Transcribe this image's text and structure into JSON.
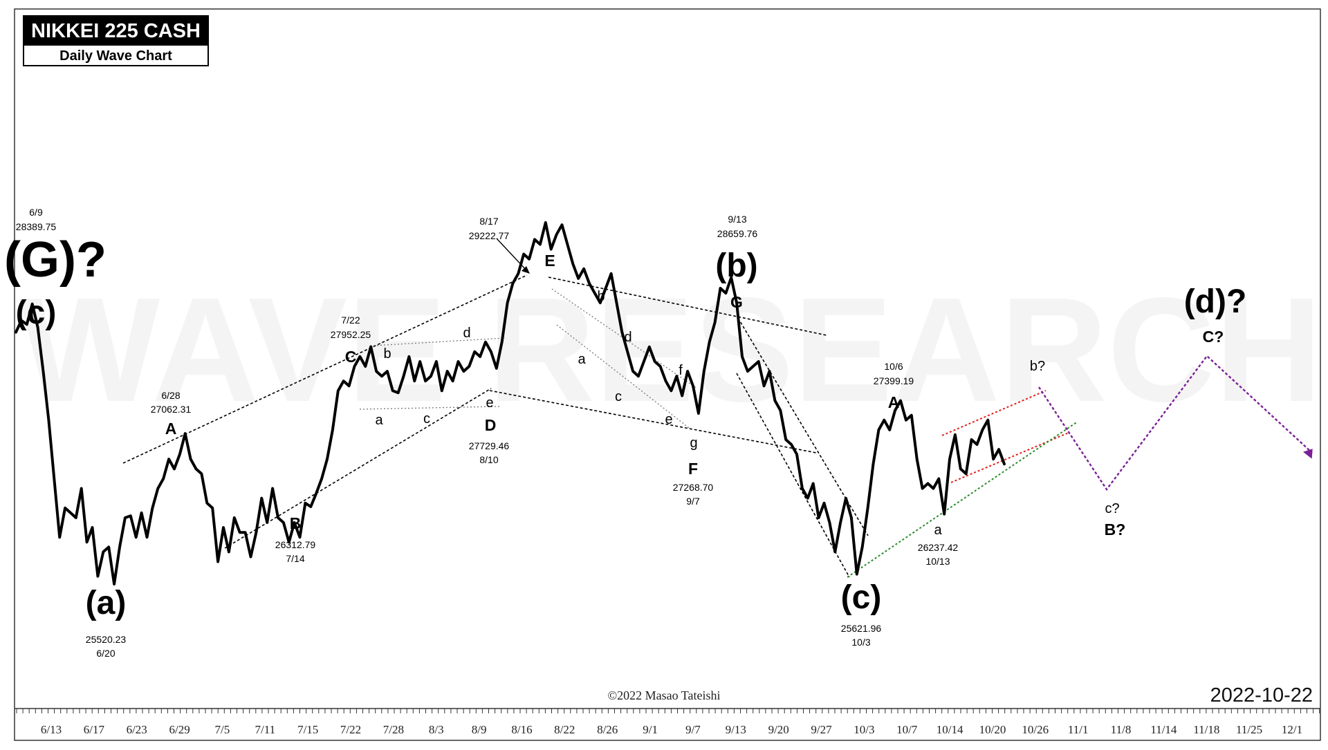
{
  "header": {
    "title": "NIKKEI 225 CASH",
    "subtitle": "Daily Wave Chart"
  },
  "watermark": "WAVE RESEARCH",
  "copyright": "©2022 Masao Tateishi",
  "date_stamp": "2022-10-22",
  "colors": {
    "price": "#000000",
    "trendline": "#000000",
    "red_channel": "#e0201a",
    "green_support": "#2a8a2a",
    "projection": "#7a1f96",
    "watermark": "#f4f4f4"
  },
  "chart_data": {
    "type": "line",
    "title": "NIKKEI 225 CASH",
    "subtitle": "Daily Wave Chart",
    "x_ticks": [
      "6/13",
      "6/17",
      "6/23",
      "6/29",
      "7/5",
      "7/11",
      "7/15",
      "7/22",
      "7/28",
      "8/3",
      "8/9",
      "8/16",
      "8/22",
      "8/26",
      "9/1",
      "9/7",
      "9/13",
      "9/20",
      "9/27",
      "10/3",
      "10/7",
      "10/14",
      "10/20",
      "10/26",
      "11/1",
      "11/8",
      "11/14",
      "11/18",
      "11/25",
      "12/1"
    ],
    "ylim": [
      25000,
      29600
    ],
    "grid": false,
    "series": [
      {
        "values": [
          28100,
          28220,
          28180,
          28389.75,
          28150,
          27700,
          27200,
          26600,
          26000,
          26300,
          26250,
          26200,
          26500,
          25950,
          26100,
          25600,
          25850,
          25900,
          25520.23,
          25900,
          26200,
          26220,
          26000,
          26250,
          26000,
          26300,
          26500,
          26600,
          26800,
          26700,
          26850,
          27062.31,
          26800,
          26700,
          26650,
          26350,
          26300,
          25750,
          26100,
          25850,
          26200,
          26050,
          26050,
          25800,
          26050,
          26400,
          26150,
          26500,
          26200,
          26150,
          25950,
          26150,
          26000,
          26350,
          26312.79,
          26450,
          26600,
          26800,
          27100,
          27500,
          27600,
          27550,
          27750,
          27850,
          27750,
          27952.25,
          27700,
          27650,
          27700,
          27500,
          27480,
          27650,
          27850,
          27600,
          27800,
          27600,
          27650,
          27800,
          27500,
          27700,
          27600,
          27800,
          27700,
          27750,
          27900,
          27850,
          28000,
          27900,
          27729.46,
          28000,
          28400,
          28600,
          28700,
          28900,
          28850,
          29050,
          29000,
          29222.77,
          28950,
          29100,
          29200,
          29000,
          28800,
          28650,
          28750,
          28600,
          28500,
          28400,
          28550,
          28700,
          28400,
          28100,
          27900,
          27700,
          27650,
          27800,
          27950,
          27800,
          27750,
          27600,
          27500,
          27650,
          27450,
          27700,
          27550,
          27268.7,
          27700,
          28000,
          28200,
          28550,
          28500,
          28659.76,
          28400,
          27850,
          27700,
          27750,
          27800,
          27550,
          27700,
          27400,
          27300,
          27000,
          26950,
          26850,
          26500,
          26400,
          26550,
          26200,
          26350,
          26150,
          25850,
          26150,
          26400,
          26200,
          25621.96,
          25900,
          26300,
          26750,
          27100,
          27200,
          27100,
          27300,
          27399.19,
          27200,
          27250,
          26800,
          26500,
          26550,
          26500,
          26600,
          26237.42,
          26800,
          27050,
          26700,
          26650,
          27000,
          26950,
          27100,
          27200,
          26800,
          26900,
          26750
        ]
      }
    ],
    "swing_labels": [
      {
        "wave": "(G)?",
        "sub": "(c)",
        "date": "6/9",
        "price": "28389.75"
      },
      {
        "wave": "(a)",
        "date": "6/20",
        "price": "25520.23"
      },
      {
        "wave": "A",
        "date": "6/28",
        "price": "27062.31"
      },
      {
        "wave": "B",
        "date": "7/14",
        "price": "26312.79"
      },
      {
        "wave": "C",
        "date": "7/22",
        "price": "27952.25"
      },
      {
        "wave": "D",
        "date": "8/10",
        "price": "27729.46"
      },
      {
        "wave": "E",
        "date": "8/17",
        "price": "29222.77"
      },
      {
        "wave": "F",
        "date": "9/7",
        "price": "27268.70"
      },
      {
        "wave": "(b)",
        "sub": "G",
        "date": "9/13",
        "price": "28659.76"
      },
      {
        "wave": "(c)",
        "date": "10/3",
        "price": "25621.96"
      },
      {
        "wave": "A",
        "date": "10/6",
        "price": "27399.19"
      },
      {
        "wave": "a",
        "date": "10/13",
        "price": "26237.42"
      }
    ],
    "minor_labels": [
      "b",
      "a",
      "c",
      "d",
      "e",
      "b",
      "a",
      "d",
      "c",
      "f",
      "e",
      "g"
    ],
    "projection_labels": [
      "b?",
      "c?",
      "B?",
      "C?",
      "(d)?"
    ]
  }
}
